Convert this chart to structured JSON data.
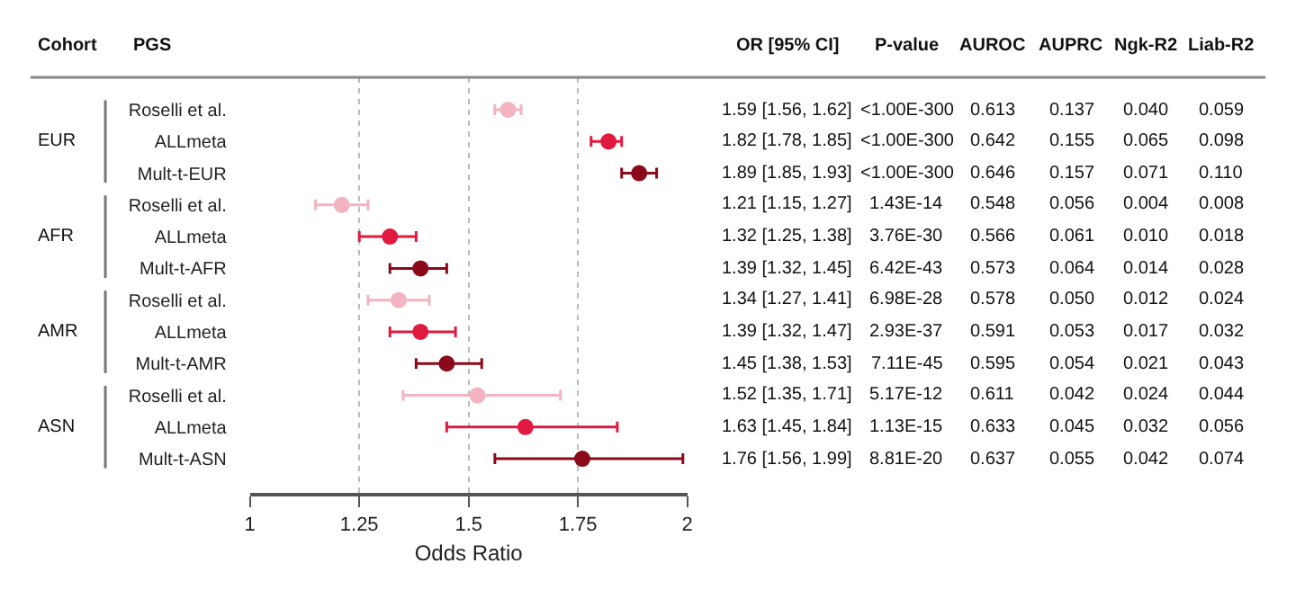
{
  "chart_data": {
    "type": "scatter",
    "orientation": "horizontal",
    "xlabel": "Odds Ratio",
    "xlim": [
      1,
      2
    ],
    "xticks": [
      1,
      1.25,
      1.5,
      1.75,
      2
    ],
    "grid": "x",
    "marker": "circle",
    "categories": [
      "Roselli et al.",
      "ALLmeta",
      "Mult-t-EUR",
      "Roselli et al.",
      "ALLmeta",
      "Mult-t-AFR",
      "Roselli et al.",
      "ALLmeta",
      "Mult-t-AMR",
      "Roselli et al.",
      "ALLmeta",
      "Mult-t-ASN"
    ],
    "values": [
      1.59,
      1.82,
      1.89,
      1.21,
      1.32,
      1.39,
      1.34,
      1.39,
      1.45,
      1.52,
      1.63,
      1.76
    ],
    "errors": [
      [
        1.56,
        1.62
      ],
      [
        1.78,
        1.85
      ],
      [
        1.85,
        1.93
      ],
      [
        1.15,
        1.27
      ],
      [
        1.25,
        1.38
      ],
      [
        1.32,
        1.45
      ],
      [
        1.27,
        1.41
      ],
      [
        1.32,
        1.47
      ],
      [
        1.38,
        1.53
      ],
      [
        1.35,
        1.71
      ],
      [
        1.45,
        1.84
      ],
      [
        1.56,
        1.99
      ]
    ],
    "colors": [
      "#f4b3c0",
      "#e0193f",
      "#8b0a1a",
      "#f4b3c0",
      "#e0193f",
      "#8b0a1a",
      "#f4b3c0",
      "#e0193f",
      "#8b0a1a",
      "#f4b3c0",
      "#e0193f",
      "#8b0a1a"
    ],
    "value_labels": [
      "1.59 [1.56, 1.62]",
      "1.82 [1.78, 1.85]",
      "1.89 [1.85, 1.93]",
      "1.21 [1.15, 1.27]",
      "1.32 [1.25, 1.38]",
      "1.39 [1.32, 1.45]",
      "1.34 [1.27, 1.41]",
      "1.39 [1.32, 1.47]",
      "1.45 [1.38, 1.53]",
      "1.52 [1.35, 1.71]",
      "1.63 [1.45, 1.84]",
      "1.76 [1.56, 1.99]"
    ],
    "annotations": [
      "Cohort",
      "PGS",
      "OR [95% CI]",
      "P-value",
      "AUROC",
      "AUPRC",
      "Ngk-R2",
      "Liab-R2",
      "EUR",
      "AFR",
      "AMR",
      "ASN",
      "<1.00E-300",
      "0.613",
      "0.137",
      "0.040",
      "0.059",
      "<1.00E-300",
      "0.642",
      "0.155",
      "0.065",
      "0.098",
      "<1.00E-300",
      "0.646",
      "0.157",
      "0.071",
      "0.110",
      "1.43E-14",
      "0.548",
      "0.056",
      "0.004",
      "0.008",
      "3.76E-30",
      "0.566",
      "0.061",
      "0.010",
      "0.018",
      "6.42E-43",
      "0.573",
      "0.064",
      "0.014",
      "0.028",
      "6.98E-28",
      "0.578",
      "0.050",
      "0.012",
      "0.024",
      "2.93E-37",
      "0.591",
      "0.053",
      "0.017",
      "0.032",
      "7.11E-45",
      "0.595",
      "0.054",
      "0.021",
      "0.043",
      "5.17E-12",
      "0.611",
      "0.042",
      "0.024",
      "0.044",
      "1.13E-15",
      "0.633",
      "0.045",
      "0.032",
      "0.056",
      "8.81E-20",
      "0.637",
      "0.055",
      "0.042",
      "0.074"
    ]
  }
}
